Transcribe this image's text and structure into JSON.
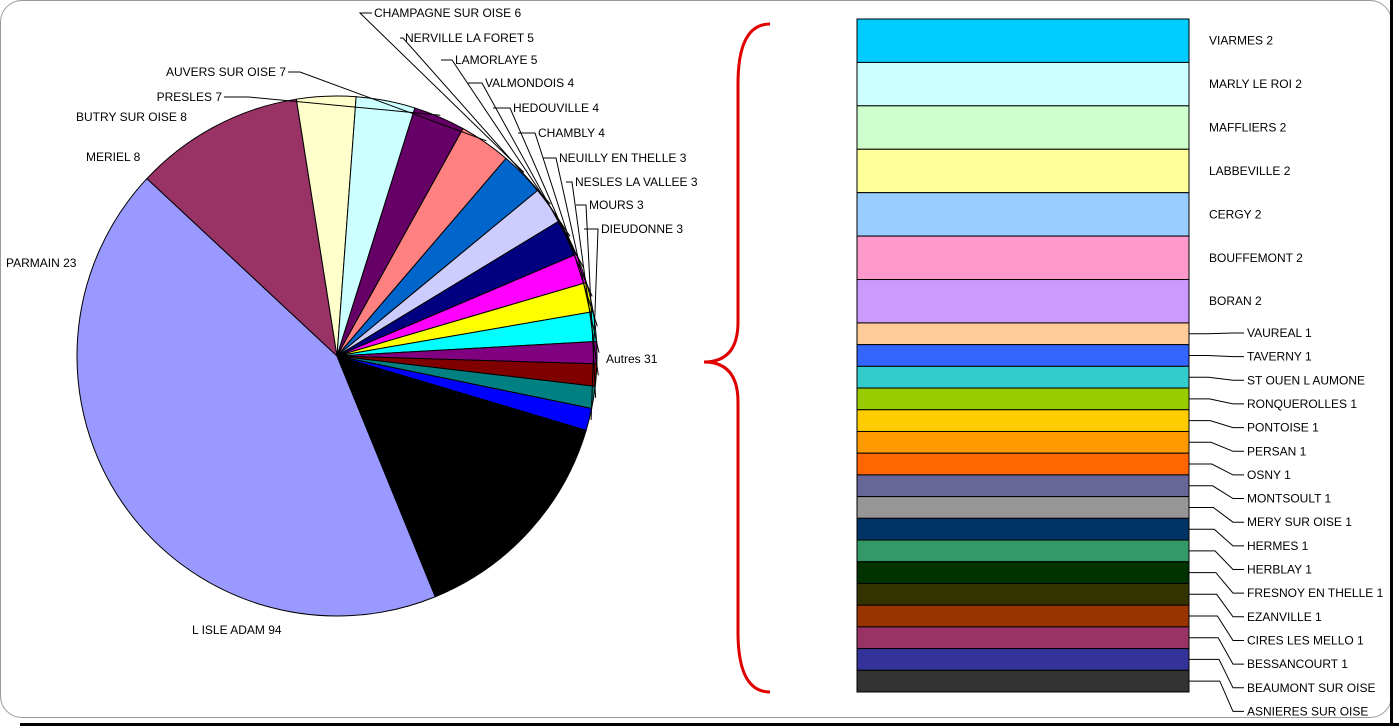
{
  "chart_data": [
    {
      "type": "pie",
      "slices": [
        {
          "label": "L ISLE ADAM",
          "value": 94,
          "color": "#9999FF"
        },
        {
          "label": "PARMAIN",
          "value": 23,
          "color": "#993366"
        },
        {
          "label": "MERIEL",
          "value": 8,
          "color": "#FFFFCC"
        },
        {
          "label": "BUTRY SUR OISE",
          "value": 8,
          "color": "#CCFFFF"
        },
        {
          "label": "PRESLES",
          "value": 7,
          "color": "#660066"
        },
        {
          "label": "AUVERS SUR OISE",
          "value": 7,
          "color": "#FF8080"
        },
        {
          "label": "CHAMPAGNE SUR OISE",
          "value": 6,
          "color": "#0066CC"
        },
        {
          "label": "NERVILLE LA FORET",
          "value": 5,
          "color": "#CCCCFF"
        },
        {
          "label": "LAMORLAYE",
          "value": 5,
          "color": "#000080"
        },
        {
          "label": "VALMONDOIS",
          "value": 4,
          "color": "#FF00FF"
        },
        {
          "label": "HEDOUVILLE",
          "value": 4,
          "color": "#FFFF00"
        },
        {
          "label": "CHAMBLY",
          "value": 4,
          "color": "#00FFFF"
        },
        {
          "label": "NEUILLY EN THELLE",
          "value": 3,
          "color": "#800080"
        },
        {
          "label": "NESLES LA VALLEE",
          "value": 3,
          "color": "#800000"
        },
        {
          "label": "MOURS",
          "value": 3,
          "color": "#008080"
        },
        {
          "label": "DIEUDONNE",
          "value": 3,
          "color": "#0000FF"
        },
        {
          "label": "Autres",
          "value": 31,
          "color": "#000000"
        }
      ]
    },
    {
      "type": "bar",
      "stacked": true,
      "segments": [
        {
          "label": "VIARMES",
          "value": 2,
          "color": "#00CCFF"
        },
        {
          "label": "MARLY LE ROI",
          "value": 2,
          "color": "#CCFFFF"
        },
        {
          "label": "MAFFLIERS",
          "value": 2,
          "color": "#CCFFCC"
        },
        {
          "label": "LABBEVILLE",
          "value": 2,
          "color": "#FFFF99"
        },
        {
          "label": "CERGY",
          "value": 2,
          "color": "#99CCFF"
        },
        {
          "label": "BOUFFEMONT",
          "value": 2,
          "color": "#FF99CC"
        },
        {
          "label": "BORAN",
          "value": 2,
          "color": "#CC99FF"
        },
        {
          "label": "VAUREAL",
          "value": 1,
          "color": "#FFCC99"
        },
        {
          "label": "TAVERNY",
          "value": 1,
          "color": "#3366FF"
        },
        {
          "label": "ST OUEN L AUMONE",
          "value": 1,
          "color": "#33CCCC"
        },
        {
          "label": "RONQUEROLLES",
          "value": 1,
          "color": "#99CC00"
        },
        {
          "label": "PONTOISE",
          "value": 1,
          "color": "#FFCC00"
        },
        {
          "label": "PERSAN",
          "value": 1,
          "color": "#FF9900"
        },
        {
          "label": "OSNY",
          "value": 1,
          "color": "#FF6600"
        },
        {
          "label": "MONTSOULT",
          "value": 1,
          "color": "#666699"
        },
        {
          "label": "MERY SUR OISE",
          "value": 1,
          "color": "#969696"
        },
        {
          "label": "HERMES",
          "value": 1,
          "color": "#003366"
        },
        {
          "label": "HERBLAY",
          "value": 1,
          "color": "#339966"
        },
        {
          "label": "FRESNOY EN THELLE",
          "value": 1,
          "color": "#003300"
        },
        {
          "label": "EZANVILLE",
          "value": 1,
          "color": "#333300"
        },
        {
          "label": "CIRES LES MELLO",
          "value": 1,
          "color": "#993300"
        },
        {
          "label": "BESSANCOURT",
          "value": 1,
          "color": "#993366"
        },
        {
          "label": "BEAUMONT SUR OISE",
          "value": 1,
          "color": "#333399"
        },
        {
          "label": "ASNIERES SUR OISE",
          "value": 1,
          "color": "#333333"
        }
      ]
    }
  ],
  "pie_label_texts": [
    "L ISLE ADAM 94",
    "PARMAIN 23",
    "MERIEL 8",
    "BUTRY SUR OISE 8",
    "PRESLES 7",
    "AUVERS SUR OISE 7",
    "CHAMPAGNE SUR OISE 6",
    "NERVILLE LA FORET 5",
    "LAMORLAYE 5",
    "VALMONDOIS 4",
    "HEDOUVILLE 4",
    "CHAMBLY 4",
    "NEUILLY EN THELLE 3",
    "NESLES LA VALLEE 3",
    "MOURS 3",
    "DIEUDONNE 3",
    "Autres 31"
  ],
  "bar_label_texts": [
    "VIARMES 2",
    "MARLY LE ROI 2",
    "MAFFLIERS 2",
    "LABBEVILLE 2",
    "CERGY 2",
    "BOUFFEMONT 2",
    "BORAN 2",
    "VAUREAL 1",
    "TAVERNY 1",
    "ST OUEN L AUMONE",
    "RONQUEROLLES 1",
    "PONTOISE 1",
    "PERSAN 1",
    "OSNY 1",
    "MONTSOULT 1",
    "MERY SUR OISE 1",
    "HERMES 1",
    "HERBLAY 1",
    "FRESNOY EN THELLE 1",
    "EZANVILLE 1",
    "CIRES LES MELLO 1",
    "BESSANCOURT 1",
    "BEAUMONT SUR OISE",
    "ASNIERES SUR OISE"
  ]
}
